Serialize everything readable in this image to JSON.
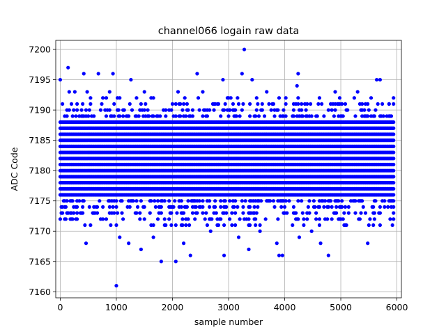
{
  "chart_data": {
    "type": "scatter",
    "title": "channel066 logain raw data",
    "xlabel": "sample number",
    "ylabel": "ADC Code",
    "xlim": [
      -80,
      6080
    ],
    "ylim": [
      7159,
      7201.5
    ],
    "xticks": [
      0,
      1000,
      2000,
      3000,
      4000,
      5000,
      6000
    ],
    "yticks": [
      7160,
      7165,
      7170,
      7175,
      7180,
      7185,
      7190,
      7195,
      7200
    ],
    "grid": true,
    "marker_color": "#0000ff",
    "marker": "circle",
    "dense_band": {
      "x_start": 0,
      "x_end": 5940,
      "x_step": 20,
      "y_min": 7176,
      "y_max": 7188
    },
    "outliers": [
      {
        "x": 0,
        "y": 7195
      },
      {
        "x": 20,
        "y": 7173
      },
      {
        "x": 40,
        "y": 7191
      },
      {
        "x": 140,
        "y": 7197
      },
      {
        "x": 160,
        "y": 7193
      },
      {
        "x": 260,
        "y": 7193
      },
      {
        "x": 300,
        "y": 7190
      },
      {
        "x": 420,
        "y": 7196
      },
      {
        "x": 440,
        "y": 7171
      },
      {
        "x": 460,
        "y": 7168
      },
      {
        "x": 480,
        "y": 7193
      },
      {
        "x": 600,
        "y": 7173
      },
      {
        "x": 680,
        "y": 7196
      },
      {
        "x": 720,
        "y": 7190
      },
      {
        "x": 880,
        "y": 7193
      },
      {
        "x": 900,
        "y": 7171
      },
      {
        "x": 940,
        "y": 7196
      },
      {
        "x": 1000,
        "y": 7161
      },
      {
        "x": 1060,
        "y": 7169
      },
      {
        "x": 1140,
        "y": 7190
      },
      {
        "x": 1220,
        "y": 7168
      },
      {
        "x": 1260,
        "y": 7195
      },
      {
        "x": 1440,
        "y": 7167
      },
      {
        "x": 1500,
        "y": 7193
      },
      {
        "x": 1660,
        "y": 7169
      },
      {
        "x": 1800,
        "y": 7165
      },
      {
        "x": 1860,
        "y": 7171
      },
      {
        "x": 1940,
        "y": 7190
      },
      {
        "x": 2060,
        "y": 7165
      },
      {
        "x": 2100,
        "y": 7193
      },
      {
        "x": 2200,
        "y": 7168
      },
      {
        "x": 2320,
        "y": 7166
      },
      {
        "x": 2440,
        "y": 7196
      },
      {
        "x": 2540,
        "y": 7193
      },
      {
        "x": 2680,
        "y": 7170
      },
      {
        "x": 2800,
        "y": 7171
      },
      {
        "x": 2900,
        "y": 7195
      },
      {
        "x": 2920,
        "y": 7166
      },
      {
        "x": 3020,
        "y": 7190
      },
      {
        "x": 3180,
        "y": 7169
      },
      {
        "x": 3240,
        "y": 7196
      },
      {
        "x": 3280,
        "y": 7200
      },
      {
        "x": 3360,
        "y": 7167
      },
      {
        "x": 3420,
        "y": 7195
      },
      {
        "x": 3560,
        "y": 7170
      },
      {
        "x": 3680,
        "y": 7193
      },
      {
        "x": 3860,
        "y": 7168
      },
      {
        "x": 3900,
        "y": 7166
      },
      {
        "x": 3960,
        "y": 7166
      },
      {
        "x": 4140,
        "y": 7171
      },
      {
        "x": 4220,
        "y": 7194
      },
      {
        "x": 4240,
        "y": 7196
      },
      {
        "x": 4260,
        "y": 7169
      },
      {
        "x": 4480,
        "y": 7170
      },
      {
        "x": 4640,
        "y": 7168
      },
      {
        "x": 4780,
        "y": 7166
      },
      {
        "x": 4900,
        "y": 7193
      },
      {
        "x": 5080,
        "y": 7171
      },
      {
        "x": 5300,
        "y": 7193
      },
      {
        "x": 5480,
        "y": 7168
      },
      {
        "x": 5640,
        "y": 7195
      },
      {
        "x": 5700,
        "y": 7195
      },
      {
        "x": 5860,
        "y": 7191
      },
      {
        "x": 5900,
        "y": 7174
      }
    ]
  }
}
